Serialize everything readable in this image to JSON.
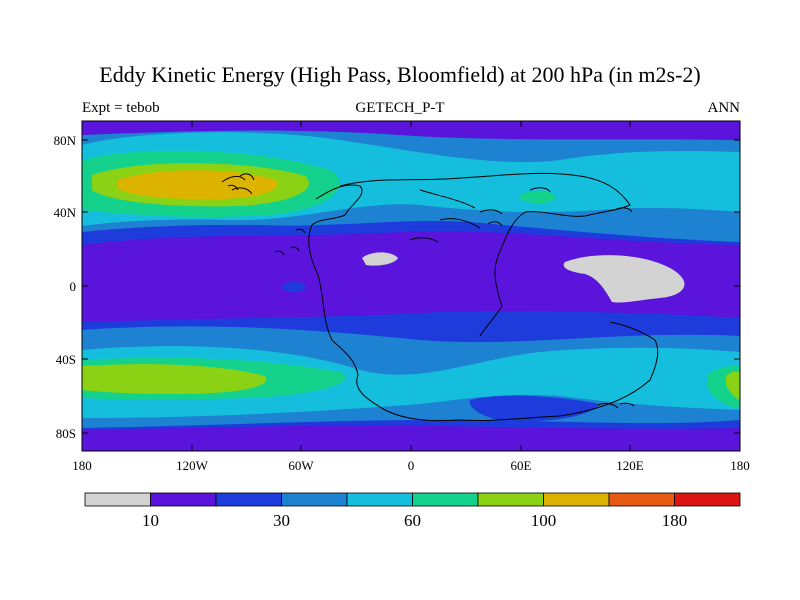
{
  "title": "Eddy Kinetic Energy (High Pass, Bloomfield) at 200 hPa (in m2s-2)",
  "subtitle_left": "Expt = tebob",
  "subtitle_center": "GETECH_P-T",
  "subtitle_right": "ANN",
  "colors": {
    "c0": "#d3d3d3",
    "c1": "#5a14dc",
    "c2": "#1e3cdc",
    "c3": "#1e82d2",
    "c4": "#14bedc",
    "c5": "#14d28c",
    "c6": "#8cd214",
    "c7": "#dcb400",
    "c8": "#e65a14",
    "c9": "#dc1414"
  },
  "chart_data": {
    "type": "heatmap",
    "projection": "cylindrical-equidistant",
    "lon_range": [
      -180,
      180
    ],
    "lat_range": [
      -90,
      90
    ],
    "x_ticks": [
      "180",
      "120W",
      "60W",
      "0",
      "60E",
      "120E",
      "180"
    ],
    "y_ticks": [
      "80N",
      "40N",
      "0",
      "40S",
      "80S"
    ],
    "colorbar": {
      "levels": 10,
      "labels": [
        {
          "text": "10",
          "boundary": 1
        },
        {
          "text": "30",
          "boundary": 3
        },
        {
          "text": "60",
          "boundary": 5
        },
        {
          "text": "100",
          "boundary": 7
        },
        {
          "text": "180",
          "boundary": 9
        }
      ]
    },
    "notes": "Contour field: maxima in NH mid-latitude Pacific (~55N, 160W-100W) and SH mid-latitudes (~50S); low values in tropics"
  }
}
